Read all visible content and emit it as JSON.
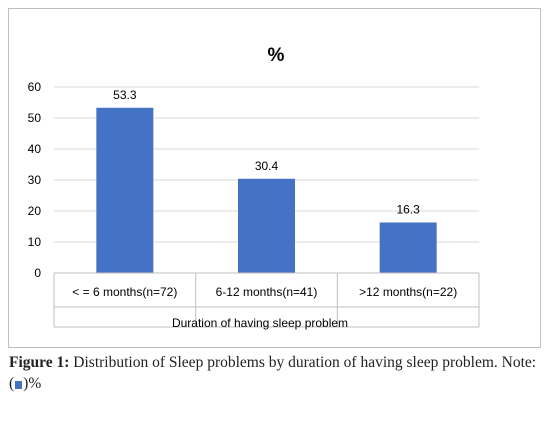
{
  "chart_data": {
    "type": "bar",
    "title": "%",
    "categories": [
      "< = 6 months(n=72)",
      "6-12 months(n=41)",
      ">12 months(n=22)"
    ],
    "series": [
      {
        "values": [
          53.3,
          30.4,
          16.3
        ],
        "labels": [
          "53.3",
          "30.4",
          "16.3"
        ]
      }
    ],
    "xlabel": "Duration of having sleep problem",
    "ylabel": "",
    "ylim": [
      0,
      60
    ],
    "yticks": [
      0,
      10,
      20,
      30,
      40,
      50,
      60
    ],
    "grid": true,
    "bar_color": "#4472c4"
  },
  "caption": {
    "figure_label": "Figure 1:",
    "text": "Distribution of Sleep problems by duration of having sleep problem. Note: (",
    "text_end": ")%"
  }
}
